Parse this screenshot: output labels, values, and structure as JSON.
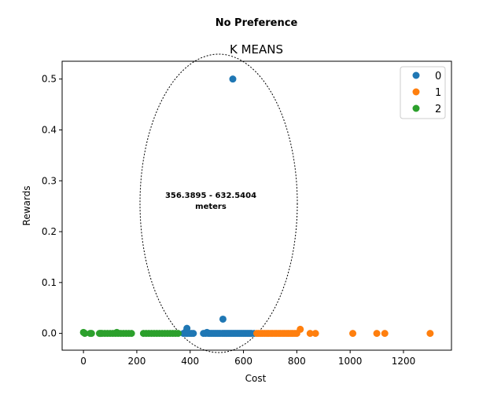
{
  "figure": {
    "suptitle": "No Preference"
  },
  "chart_data": {
    "type": "scatter",
    "title": "K MEANS",
    "xlabel": "Cost",
    "ylabel": "Rewards",
    "xlim": [
      -80,
      1380
    ],
    "ylim": [
      -0.033,
      0.535
    ],
    "xticks": [
      0,
      200,
      400,
      600,
      800,
      1000,
      1200
    ],
    "xtick_labels": [
      "0",
      "200",
      "400",
      "600",
      "800",
      "1000",
      "1200"
    ],
    "yticks": [
      0.0,
      0.1,
      0.2,
      0.3,
      0.4,
      0.5
    ],
    "ytick_labels": [
      "0.0",
      "0.1",
      "0.2",
      "0.3",
      "0.4",
      "0.5"
    ],
    "grid": false,
    "legend_position": "top-right",
    "series": [
      {
        "name": "0",
        "color": "#1f77b4",
        "points": [
          [
            375,
            0
          ],
          [
            383,
            0
          ],
          [
            390,
            0
          ],
          [
            398,
            0
          ],
          [
            405,
            0
          ],
          [
            412,
            0
          ],
          [
            450,
            0
          ],
          [
            458,
            0
          ],
          [
            463,
            0.002
          ],
          [
            468,
            0
          ],
          [
            473,
            0
          ],
          [
            478,
            0
          ],
          [
            483,
            0
          ],
          [
            488,
            0
          ],
          [
            493,
            0
          ],
          [
            498,
            0
          ],
          [
            503,
            0
          ],
          [
            508,
            0
          ],
          [
            513,
            0
          ],
          [
            520,
            0
          ],
          [
            525,
            0
          ],
          [
            530,
            0
          ],
          [
            535,
            0
          ],
          [
            540,
            0
          ],
          [
            545,
            0
          ],
          [
            550,
            0
          ],
          [
            555,
            0
          ],
          [
            560,
            0
          ],
          [
            565,
            0
          ],
          [
            570,
            0
          ],
          [
            575,
            0
          ],
          [
            580,
            0
          ],
          [
            585,
            0
          ],
          [
            590,
            0
          ],
          [
            595,
            0
          ],
          [
            600,
            0
          ],
          [
            605,
            0
          ],
          [
            610,
            0
          ],
          [
            615,
            0
          ],
          [
            620,
            0
          ],
          [
            625,
            0
          ],
          [
            630,
            0
          ],
          [
            640,
            0
          ],
          [
            388,
            0.01
          ],
          [
            385,
            0.004
          ],
          [
            523,
            0.028
          ],
          [
            560,
            0.5
          ]
        ]
      },
      {
        "name": "1",
        "color": "#ff7f0e",
        "points": [
          [
            650,
            0
          ],
          [
            657,
            0
          ],
          [
            665,
            0
          ],
          [
            672,
            0
          ],
          [
            680,
            0
          ],
          [
            688,
            0
          ],
          [
            695,
            0
          ],
          [
            703,
            0
          ],
          [
            710,
            0
          ],
          [
            718,
            0
          ],
          [
            725,
            0
          ],
          [
            733,
            0
          ],
          [
            740,
            0
          ],
          [
            748,
            0
          ],
          [
            755,
            0
          ],
          [
            763,
            0
          ],
          [
            770,
            0
          ],
          [
            778,
            0
          ],
          [
            785,
            0
          ],
          [
            793,
            0
          ],
          [
            800,
            0
          ],
          [
            813,
            0.008
          ],
          [
            850,
            0
          ],
          [
            870,
            0
          ],
          [
            1010,
            0
          ],
          [
            1100,
            0
          ],
          [
            1130,
            0
          ],
          [
            1300,
            0
          ]
        ]
      },
      {
        "name": "2",
        "color": "#2ca02c",
        "points": [
          [
            0,
            0.002
          ],
          [
            5,
            0
          ],
          [
            25,
            0
          ],
          [
            30,
            0
          ],
          [
            60,
            0
          ],
          [
            65,
            0
          ],
          [
            70,
            0
          ],
          [
            80,
            0
          ],
          [
            90,
            0
          ],
          [
            100,
            0
          ],
          [
            110,
            0
          ],
          [
            120,
            0
          ],
          [
            125,
            0.002
          ],
          [
            130,
            0
          ],
          [
            140,
            0
          ],
          [
            150,
            0
          ],
          [
            160,
            0
          ],
          [
            170,
            0
          ],
          [
            180,
            0
          ],
          [
            225,
            0
          ],
          [
            235,
            0
          ],
          [
            245,
            0
          ],
          [
            255,
            0
          ],
          [
            265,
            0
          ],
          [
            275,
            0
          ],
          [
            285,
            0
          ],
          [
            295,
            0
          ],
          [
            305,
            0
          ],
          [
            315,
            0
          ],
          [
            325,
            0
          ],
          [
            335,
            0
          ],
          [
            345,
            0
          ],
          [
            355,
            0
          ]
        ]
      }
    ],
    "annotation": {
      "lines": [
        "356.3895 - 632.5404",
        "meters"
      ],
      "shape": "dotted-ellipse"
    }
  }
}
